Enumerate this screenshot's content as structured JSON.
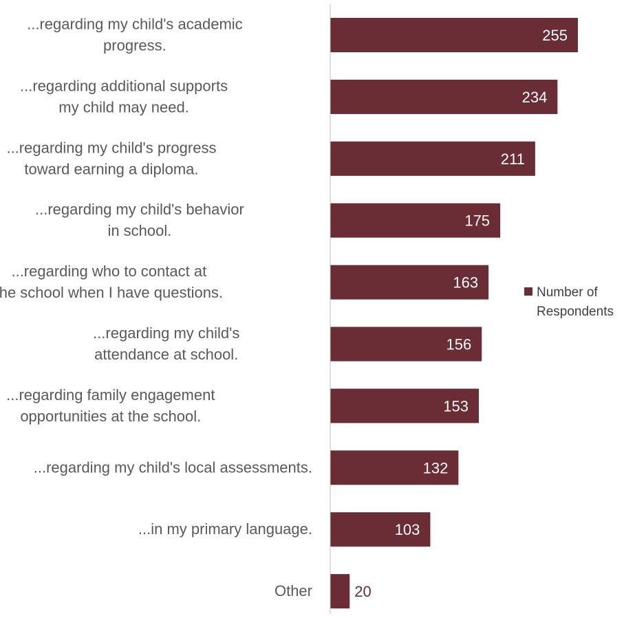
{
  "chart_data": {
    "type": "bar",
    "orientation": "horizontal",
    "categories": [
      [
        "...regarding my child's academic",
        "progress."
      ],
      [
        "...regarding additional supports",
        "my child may need."
      ],
      [
        "...regarding my child's progress",
        "toward earning a diploma."
      ],
      [
        "...regarding my child's behavior",
        "in school."
      ],
      [
        "...regarding who to contact at",
        "the school when I have questions."
      ],
      [
        "...regarding my child's",
        "attendance at school."
      ],
      [
        "...regarding family engagement",
        "opportunities at the school."
      ],
      [
        "...regarding my child's local assessments."
      ],
      [
        "...in my primary language."
      ],
      [
        "Other"
      ]
    ],
    "series": [
      {
        "name": "Number of Respondents",
        "values": [
          255,
          234,
          211,
          175,
          163,
          156,
          153,
          132,
          103,
          20
        ]
      }
    ],
    "legend": {
      "position": "right",
      "lines": [
        "Number of",
        "Respondents"
      ]
    },
    "grid": false,
    "data_labels": true,
    "colors": {
      "bar": "#6b2d35",
      "label_inside": "#ffffff",
      "label_outside": "#6b2d35",
      "category_text": "#595959",
      "axis_line": "#bfbfbf"
    }
  }
}
